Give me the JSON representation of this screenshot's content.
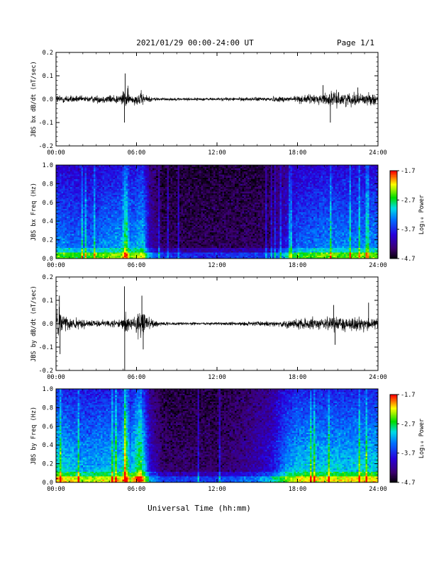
{
  "header": {
    "title": "2021/01/29  00:00-24:00 UT",
    "page": "Page 1/1"
  },
  "xlabel": "Universal Time (hh:mm)",
  "colorbar_label": "Log₁₀ Power",
  "colorbar_ticks": [
    "-1.7",
    "-2.7",
    "-3.7",
    "-4.7"
  ],
  "chart_data": [
    {
      "type": "line",
      "ylabel": "JBS bx dB/dt (nT/sec)",
      "xlim": [
        0,
        24
      ],
      "ylim": [
        -0.2,
        0.2
      ],
      "xticks": [
        "00:00",
        "06:00",
        "12:00",
        "18:00",
        "24:00"
      ],
      "yticks": [
        "0.2",
        "0.1",
        "0.0",
        "-0.1",
        "-0.2"
      ],
      "activity": [
        [
          0,
          0.02
        ],
        [
          2,
          0.012
        ],
        [
          4.8,
          0.02
        ],
        [
          5.25,
          0.05
        ],
        [
          5.6,
          0.015
        ],
        [
          6.3,
          0.03
        ],
        [
          7,
          0.01
        ],
        [
          8,
          0.006
        ],
        [
          12,
          0.006
        ],
        [
          15,
          0.008
        ],
        [
          17,
          0.012
        ],
        [
          19.5,
          0.02
        ],
        [
          20.5,
          0.03
        ],
        [
          22,
          0.025
        ],
        [
          24,
          0.022
        ]
      ],
      "spikes": [
        [
          5.1,
          -0.1
        ],
        [
          5.15,
          0.11
        ],
        [
          20.45,
          -0.1
        ],
        [
          19.9,
          0.06
        ],
        [
          22.5,
          0.05
        ]
      ]
    },
    {
      "type": "heatmap",
      "ylabel": "JBS bx Freq (Hz)",
      "xlim": [
        0,
        24
      ],
      "ylim": [
        0,
        1
      ],
      "xticks": [
        "00:00",
        "06:00",
        "12:00",
        "18:00",
        "24:00"
      ],
      "yticks": [
        "1.0",
        "0.8",
        "0.6",
        "0.4",
        "0.2",
        "0.0"
      ],
      "zlim": [
        -4.7,
        -1.7
      ],
      "activity": [
        [
          0,
          0.5
        ],
        [
          2,
          0.45
        ],
        [
          4.9,
          0.55
        ],
        [
          5.2,
          0.8
        ],
        [
          5.5,
          0.5
        ],
        [
          6.5,
          0.6
        ],
        [
          7,
          0.25
        ],
        [
          8,
          0.1
        ],
        [
          12,
          0.1
        ],
        [
          16,
          0.12
        ],
        [
          17,
          0.3
        ],
        [
          18,
          0.45
        ],
        [
          20,
          0.5
        ],
        [
          22,
          0.5
        ],
        [
          24,
          0.5
        ]
      ]
    },
    {
      "type": "line",
      "ylabel": "JBS by dB/dt (nT/sec)",
      "xlim": [
        0,
        24
      ],
      "ylim": [
        -0.2,
        0.2
      ],
      "xticks": [
        "00:00",
        "06:00",
        "12:00",
        "18:00",
        "24:00"
      ],
      "yticks": [
        "0.2",
        "0.1",
        "0.0",
        "-0.1",
        "-0.2"
      ],
      "activity": [
        [
          0,
          0.07
        ],
        [
          0.5,
          0.04
        ],
        [
          1.5,
          0.02
        ],
        [
          3,
          0.012
        ],
        [
          4.8,
          0.02
        ],
        [
          5.2,
          0.05
        ],
        [
          5.5,
          0.02
        ],
        [
          6.3,
          0.06
        ],
        [
          7,
          0.02
        ],
        [
          8,
          0.006
        ],
        [
          12,
          0.006
        ],
        [
          15,
          0.01
        ],
        [
          17,
          0.015
        ],
        [
          19.5,
          0.025
        ],
        [
          21,
          0.03
        ],
        [
          23,
          0.025
        ],
        [
          24,
          0.02
        ]
      ],
      "spikes": [
        [
          0.3,
          -0.13
        ],
        [
          0.25,
          0.12
        ],
        [
          5.1,
          0.16
        ],
        [
          5.12,
          -0.22
        ],
        [
          6.5,
          -0.11
        ],
        [
          6.4,
          0.12
        ],
        [
          20.8,
          -0.09
        ],
        [
          20.7,
          0.08
        ],
        [
          23.3,
          0.09
        ]
      ]
    },
    {
      "type": "heatmap",
      "ylabel": "JBS by Freq (Hz)",
      "xlim": [
        0,
        24
      ],
      "ylim": [
        0,
        1
      ],
      "xticks": [
        "00:00",
        "06:00",
        "12:00",
        "18:00",
        "24:00"
      ],
      "yticks": [
        "1.0",
        "0.8",
        "0.6",
        "0.4",
        "0.2",
        "0.0"
      ],
      "zlim": [
        -4.7,
        -1.7
      ],
      "activity": [
        [
          0,
          0.65
        ],
        [
          2,
          0.55
        ],
        [
          4.9,
          0.6
        ],
        [
          5.2,
          0.85
        ],
        [
          5.5,
          0.55
        ],
        [
          6.3,
          0.8
        ],
        [
          7,
          0.3
        ],
        [
          8,
          0.12
        ],
        [
          12,
          0.12
        ],
        [
          14,
          0.18
        ],
        [
          16,
          0.3
        ],
        [
          17,
          0.5
        ],
        [
          18,
          0.6
        ],
        [
          20,
          0.6
        ],
        [
          22,
          0.6
        ],
        [
          24,
          0.62
        ]
      ]
    }
  ]
}
